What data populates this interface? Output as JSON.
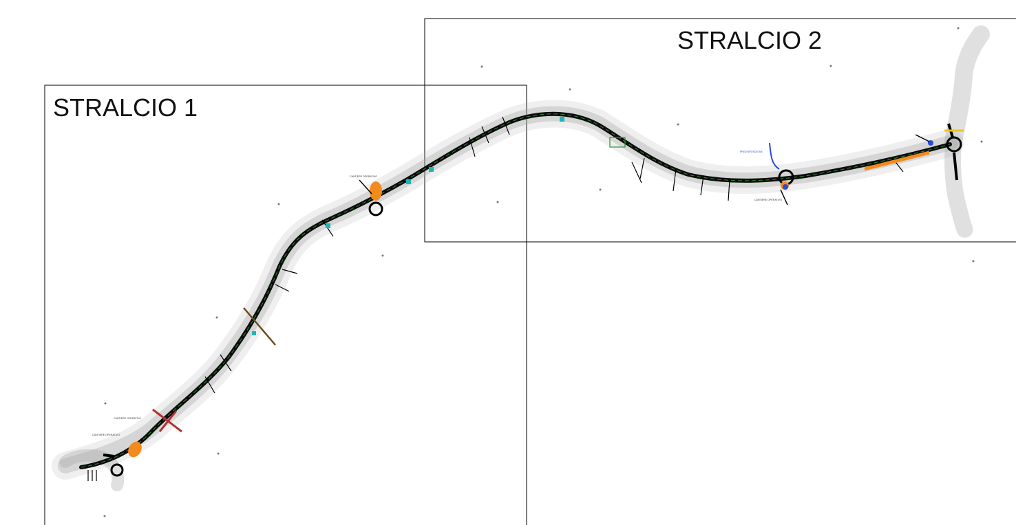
{
  "frames": {
    "stralcio_1": {
      "label": "STRALCIO 1"
    },
    "stralcio_2": {
      "label": "STRALCIO 2"
    }
  },
  "colors": {
    "road": "#0c0c0c",
    "road_centerline": "#2f8f2f",
    "context": "#9a9a9a",
    "site_area": "#f28a1c",
    "blue_area": "#2b4bd8",
    "structure": "#1fb5b5",
    "frame": "#000000",
    "red_cross": "#b03030"
  },
  "annotations": {
    "site_3": "CANTIERE OPERATIVO",
    "site_4": "CANTIERE OPERATIVO",
    "site_6": "CANTIERE OPERATIVO",
    "site_7": "CANTIERE OPERATIVO",
    "blue_note": "PREDISPOSIZIONE"
  }
}
